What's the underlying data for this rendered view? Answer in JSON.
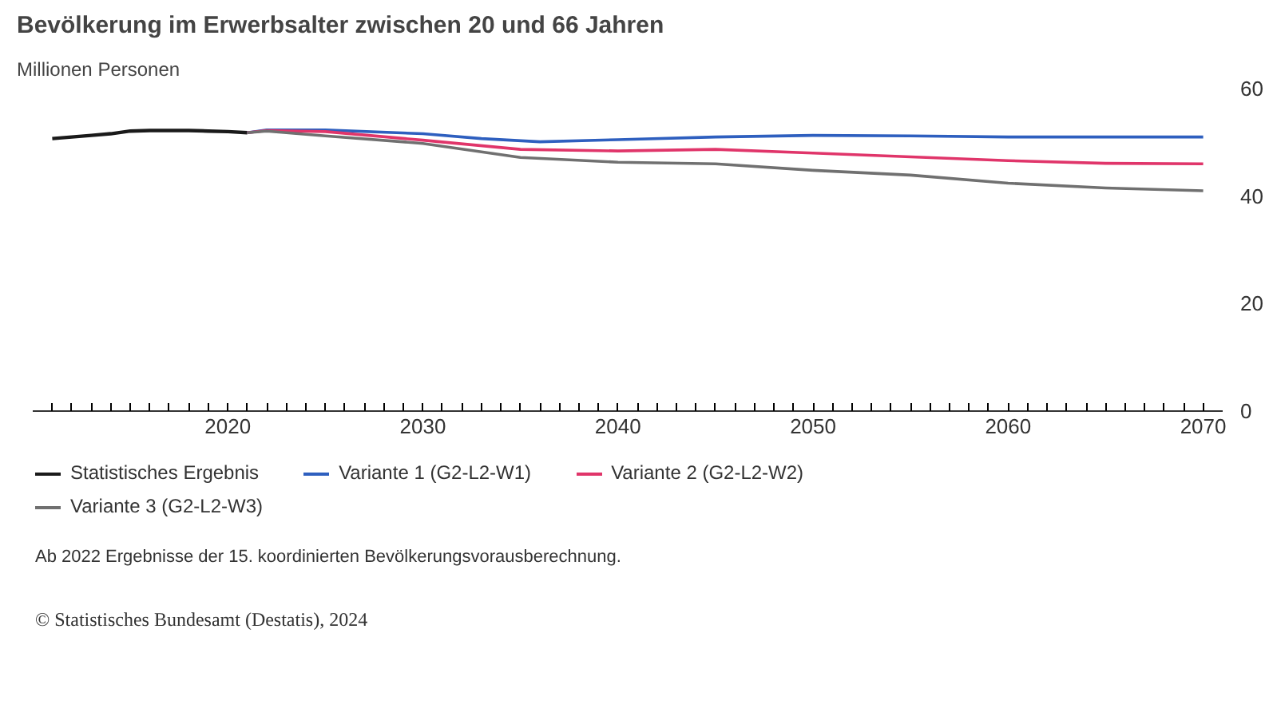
{
  "chart_data": {
    "type": "line",
    "title": "Bevölkerung im Erwerbsalter zwischen 20 und 66 Jahren",
    "subtitle": "Millionen Personen",
    "annotations": [
      "Ab 2022 Ergebnisse der 15. koordinierten Bevölkerungsvorausberechnung.",
      "© Statistisches Bundesamt (Destatis), 2024"
    ],
    "series": [
      {
        "name": "Statistisches Ergebnis",
        "color": "#1a1a1a",
        "x": [
          2011,
          2012,
          2013,
          2014,
          2015,
          2016,
          2017,
          2018,
          2019,
          2020,
          2021
        ],
        "values": [
          50.7,
          51.0,
          51.3,
          51.6,
          52.1,
          52.2,
          52.2,
          52.2,
          52.1,
          52.0,
          51.8
        ]
      },
      {
        "name": "Variante 1 (G2-L2-W1)",
        "color": "#2e5fbf",
        "x": [
          2021,
          2022,
          2025,
          2030,
          2033,
          2036,
          2040,
          2045,
          2050,
          2055,
          2060,
          2065,
          2070
        ],
        "values": [
          51.8,
          52.3,
          52.3,
          51.6,
          50.7,
          50.1,
          50.5,
          51.0,
          51.3,
          51.2,
          51.0,
          51.0,
          51.0
        ]
      },
      {
        "name": "Variante 2 (G2-L2-W2)",
        "color": "#e0356a",
        "x": [
          2021,
          2022,
          2025,
          2030,
          2035,
          2040,
          2045,
          2050,
          2055,
          2060,
          2065,
          2070
        ],
        "values": [
          51.8,
          52.2,
          52.0,
          50.4,
          48.7,
          48.4,
          48.7,
          48.0,
          47.3,
          46.6,
          46.1,
          46.0
        ]
      },
      {
        "name": "Variante 3 (G2-L2-W3)",
        "color": "#707070",
        "x": [
          2021,
          2022,
          2025,
          2030,
          2035,
          2040,
          2045,
          2050,
          2055,
          2060,
          2065,
          2070
        ],
        "values": [
          51.8,
          52.1,
          51.2,
          49.8,
          47.2,
          46.3,
          46.0,
          44.8,
          43.9,
          42.4,
          41.5,
          41.0
        ]
      }
    ],
    "xlim": [
      2010,
      2071
    ],
    "xticks": [
      {
        "value": 2011,
        "label": null
      },
      {
        "value": 2012,
        "label": null
      },
      {
        "value": 2013,
        "label": null
      },
      {
        "value": 2014,
        "label": null
      },
      {
        "value": 2015,
        "label": null
      },
      {
        "value": 2016,
        "label": null
      },
      {
        "value": 2017,
        "label": null
      },
      {
        "value": 2018,
        "label": null
      },
      {
        "value": 2019,
        "label": null
      },
      2020,
      {
        "value": 2021,
        "label": null
      },
      {
        "value": 2022,
        "label": null
      },
      {
        "value": 2023,
        "label": null
      },
      {
        "value": 2024,
        "label": null
      },
      {
        "value": 2025,
        "label": null
      },
      {
        "value": 2026,
        "label": null
      },
      {
        "value": 2027,
        "label": null
      },
      {
        "value": 2028,
        "label": null
      },
      {
        "value": 2029,
        "label": null
      },
      2030,
      {
        "value": 2031,
        "label": null
      },
      {
        "value": 2032,
        "label": null
      },
      {
        "value": 2033,
        "label": null
      },
      {
        "value": 2034,
        "label": null
      },
      {
        "value": 2035,
        "label": null
      },
      {
        "value": 2036,
        "label": null
      },
      {
        "value": 2037,
        "label": null
      },
      {
        "value": 2038,
        "label": null
      },
      {
        "value": 2039,
        "label": null
      },
      2040,
      {
        "value": 2041,
        "label": null
      },
      {
        "value": 2042,
        "label": null
      },
      {
        "value": 2043,
        "label": null
      },
      {
        "value": 2044,
        "label": null
      },
      {
        "value": 2045,
        "label": null
      },
      {
        "value": 2046,
        "label": null
      },
      {
        "value": 2047,
        "label": null
      },
      {
        "value": 2048,
        "label": null
      },
      {
        "value": 2049,
        "label": null
      },
      2050,
      {
        "value": 2051,
        "label": null
      },
      {
        "value": 2052,
        "label": null
      },
      {
        "value": 2053,
        "label": null
      },
      {
        "value": 2054,
        "label": null
      },
      {
        "value": 2055,
        "label": null
      },
      {
        "value": 2056,
        "label": null
      },
      {
        "value": 2057,
        "label": null
      },
      {
        "value": 2058,
        "label": null
      },
      {
        "value": 2059,
        "label": null
      },
      2060,
      {
        "value": 2061,
        "label": null
      },
      {
        "value": 2062,
        "label": null
      },
      {
        "value": 2063,
        "label": null
      },
      {
        "value": 2064,
        "label": null
      },
      {
        "value": 2065,
        "label": null
      },
      {
        "value": 2066,
        "label": null
      },
      {
        "value": 2067,
        "label": null
      },
      {
        "value": 2068,
        "label": null
      },
      {
        "value": 2069,
        "label": null
      },
      2070
    ],
    "ylim": [
      0,
      60
    ],
    "yticks": [
      0,
      20,
      40,
      60
    ],
    "grid": false,
    "legend": "bottom",
    "marker": "none",
    "line_style": "solid"
  }
}
